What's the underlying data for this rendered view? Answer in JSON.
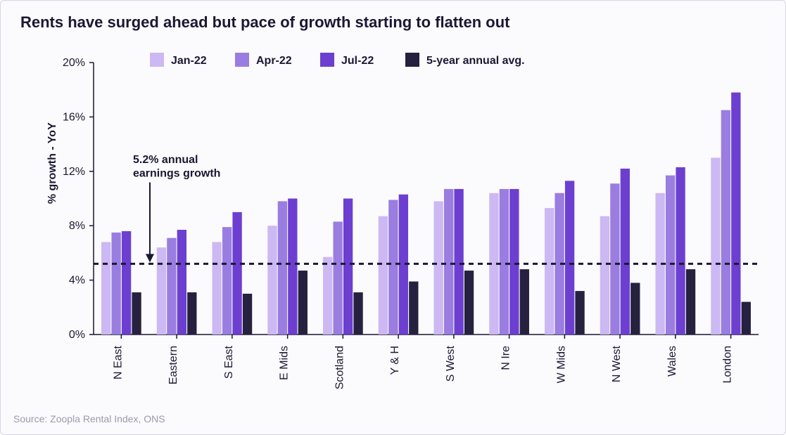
{
  "title": "Rents have surged ahead but pace of growth starting to flatten out",
  "source": "Source: Zoopla Rental Index, ONS",
  "chart": {
    "type": "bar",
    "background_color": "#fbfafc",
    "ylabel": "% growth - YoY",
    "ylim": [
      0,
      20
    ],
    "ytick_step": 4,
    "ytick_suffix": "%",
    "reference_line": {
      "value": 5.2,
      "label_lines": [
        "5.2% annual",
        "earnings growth"
      ],
      "stroke": "#1a1832",
      "dash": "7 6",
      "width": 3
    },
    "series": [
      {
        "key": "jan22",
        "label": "Jan-22",
        "color": "#ccb8f2"
      },
      {
        "key": "apr22",
        "label": "Apr-22",
        "color": "#9a7de0"
      },
      {
        "key": "jul22",
        "label": "Jul-22",
        "color": "#6c3fd1"
      },
      {
        "key": "avg5y",
        "label": "5-year annual avg.",
        "color": "#26213f"
      }
    ],
    "categories": [
      "N East",
      "Eastern",
      "S East",
      "E Mids",
      "Scotland",
      "Y & H",
      "S West",
      "N Ire",
      "W Mids",
      "N West",
      "Wales",
      "London"
    ],
    "data": {
      "jan22": [
        6.8,
        6.4,
        6.8,
        8.0,
        5.7,
        8.7,
        9.8,
        10.4,
        9.3,
        8.7,
        10.4,
        13.0
      ],
      "apr22": [
        7.5,
        7.1,
        7.9,
        9.8,
        8.3,
        9.9,
        10.7,
        10.7,
        10.4,
        11.1,
        11.7,
        16.5
      ],
      "jul22": [
        7.6,
        7.7,
        9.0,
        10.0,
        10.0,
        10.3,
        10.7,
        10.7,
        11.3,
        12.2,
        12.3,
        17.8
      ],
      "avg5y": [
        3.1,
        3.1,
        3.0,
        4.7,
        3.1,
        3.9,
        4.7,
        4.8,
        3.2,
        3.8,
        4.8,
        2.4
      ]
    },
    "axis_font_size": 16,
    "title_font_size": 22,
    "bar_group_gap": 0.28,
    "bar_inner_gap": 0.02,
    "grid_color": "transparent",
    "axis_color": "#1a1832",
    "label_color": "#1a1832"
  }
}
